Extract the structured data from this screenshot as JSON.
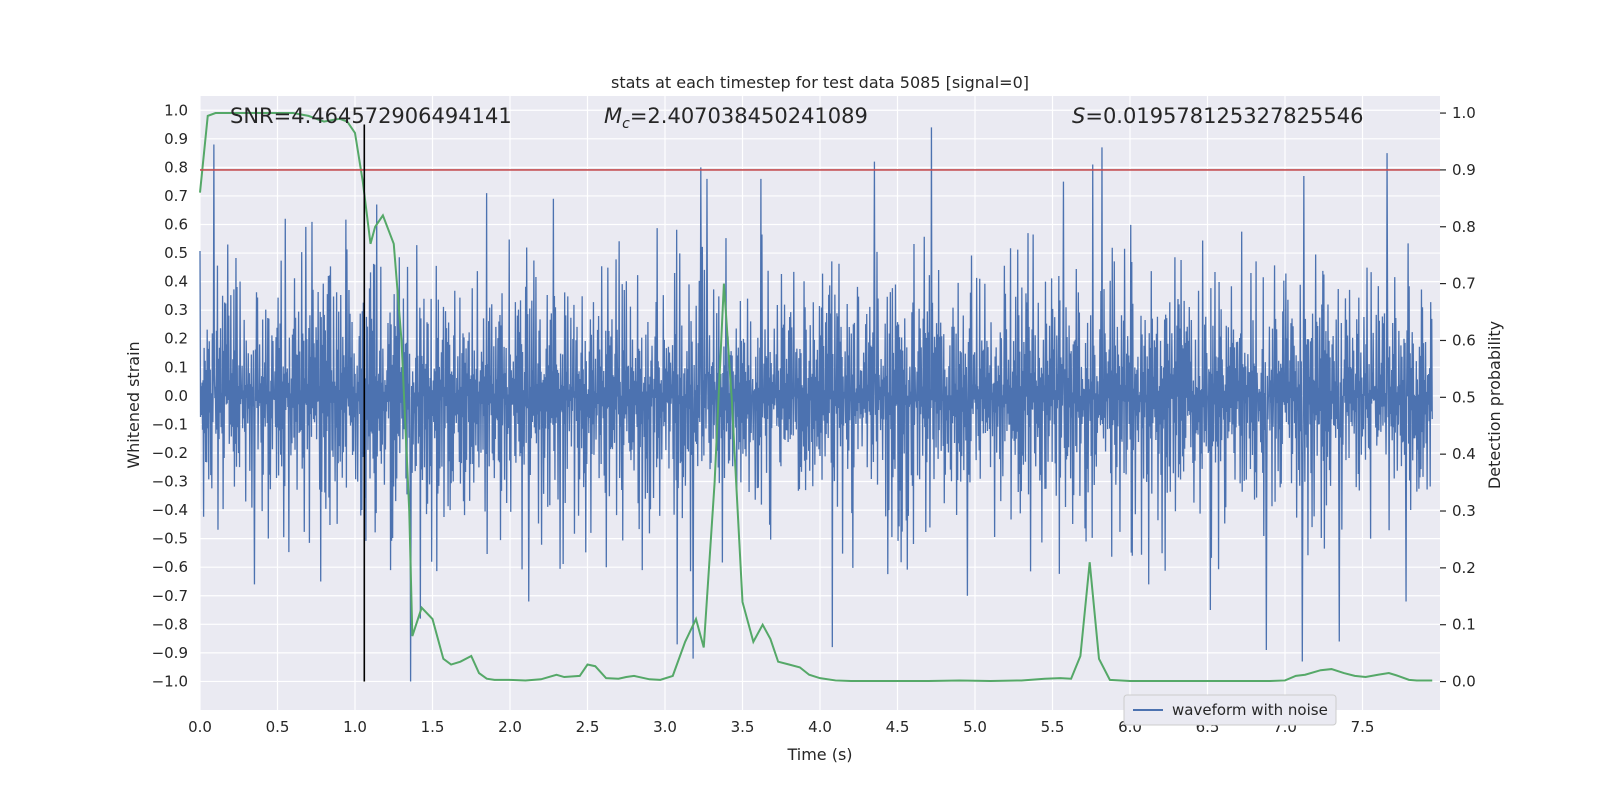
{
  "chart_data": {
    "type": "line",
    "title": "stats at each timestep for test data 5085 [signal=0]",
    "xlabel": "Time (s)",
    "ylabel": "Whitened strain",
    "y2label": "Detection probability",
    "xlim": [
      0.0,
      8.0
    ],
    "ylim": [
      -1.1,
      1.05
    ],
    "y2lim": [
      -0.05,
      1.03
    ],
    "xticks": [
      "0.0",
      "0.5",
      "1.0",
      "1.5",
      "2.0",
      "2.5",
      "3.0",
      "3.5",
      "4.0",
      "4.5",
      "5.0",
      "5.5",
      "6.0",
      "6.5",
      "7.0",
      "7.5"
    ],
    "yticks": [
      "1.0",
      "0.9",
      "0.8",
      "0.7",
      "0.6",
      "0.5",
      "0.4",
      "0.3",
      "0.2",
      "0.1",
      "0.0",
      "-0.1",
      "-0.2",
      "-0.3",
      "-0.4",
      "-0.5",
      "-0.6",
      "-0.7",
      "-0.8",
      "-0.9",
      "-1.0"
    ],
    "y2ticks": [
      "1.0",
      "0.9",
      "0.8",
      "0.7",
      "0.6",
      "0.5",
      "0.4",
      "0.3",
      "0.2",
      "0.1",
      "0.0"
    ],
    "annotations": {
      "snr": "SNR=4.464572906494141",
      "mc_symbol": "M",
      "mc_subscript": "c",
      "mc_value": "=2.407038450241089",
      "s_symbol": "S",
      "s_value": "=0.019578125327825546"
    },
    "legend": {
      "label": "waveform with noise",
      "location": "lower-right"
    },
    "threshold_probability": 0.9,
    "marker_time": 1.06,
    "waveform": {
      "name": "waveform with noise",
      "color": "#4c72b0",
      "typical_envelope": 0.4,
      "spikes": [
        [
          0.09,
          0.88
        ],
        [
          0.18,
          0.53
        ],
        [
          0.35,
          -0.66
        ],
        [
          0.55,
          0.62
        ],
        [
          0.78,
          -0.65
        ],
        [
          1.14,
          0.67
        ],
        [
          1.23,
          -0.61
        ],
        [
          1.36,
          -1.0
        ],
        [
          1.42,
          -0.78
        ],
        [
          1.85,
          0.71
        ],
        [
          2.12,
          -0.72
        ],
        [
          2.28,
          0.69
        ],
        [
          2.62,
          -0.6
        ],
        [
          3.08,
          -0.87
        ],
        [
          3.18,
          -0.92
        ],
        [
          3.23,
          0.8
        ],
        [
          3.27,
          0.76
        ],
        [
          3.62,
          0.76
        ],
        [
          4.08,
          -0.88
        ],
        [
          4.35,
          0.82
        ],
        [
          4.72,
          0.94
        ],
        [
          4.95,
          -0.7
        ],
        [
          5.57,
          0.75
        ],
        [
          5.76,
          0.81
        ],
        [
          5.82,
          0.87
        ],
        [
          6.12,
          -0.66
        ],
        [
          6.52,
          -0.75
        ],
        [
          6.88,
          -0.89
        ],
        [
          7.11,
          -0.93
        ],
        [
          7.12,
          0.77
        ],
        [
          7.35,
          -0.86
        ],
        [
          7.66,
          0.85
        ],
        [
          7.78,
          -0.72
        ]
      ]
    },
    "probability": {
      "name": "detection probability",
      "color": "#55a868",
      "x": [
        0.0,
        0.05,
        0.1,
        0.2,
        0.3,
        0.4,
        0.5,
        0.6,
        0.7,
        0.8,
        0.9,
        0.95,
        1.0,
        1.05,
        1.1,
        1.13,
        1.18,
        1.25,
        1.3,
        1.35,
        1.37,
        1.43,
        1.5,
        1.57,
        1.62,
        1.68,
        1.75,
        1.8,
        1.85,
        1.9,
        2.0,
        2.1,
        2.2,
        2.3,
        2.35,
        2.45,
        2.5,
        2.55,
        2.62,
        2.7,
        2.75,
        2.8,
        2.9,
        2.97,
        3.05,
        3.13,
        3.2,
        3.25,
        3.32,
        3.38,
        3.43,
        3.5,
        3.57,
        3.63,
        3.68,
        3.73,
        3.8,
        3.87,
        3.93,
        4.0,
        4.1,
        4.2,
        4.3,
        4.5,
        4.7,
        4.9,
        5.1,
        5.3,
        5.45,
        5.55,
        5.62,
        5.68,
        5.74,
        5.8,
        5.87,
        6.0,
        6.1,
        6.3,
        6.5,
        6.7,
        6.9,
        7.0,
        7.07,
        7.13,
        7.23,
        7.3,
        7.38,
        7.45,
        7.52,
        7.6,
        7.67,
        7.73,
        7.8,
        7.85,
        7.95
      ],
      "y": [
        0.86,
        0.995,
        1.0,
        1.0,
        1.0,
        1.0,
        1.0,
        1.0,
        0.995,
        0.985,
        0.99,
        0.985,
        0.965,
        0.88,
        0.77,
        0.8,
        0.82,
        0.77,
        0.6,
        0.3,
        0.08,
        0.13,
        0.11,
        0.04,
        0.03,
        0.035,
        0.045,
        0.015,
        0.005,
        0.003,
        0.003,
        0.002,
        0.004,
        0.012,
        0.008,
        0.01,
        0.03,
        0.027,
        0.006,
        0.005,
        0.008,
        0.01,
        0.004,
        0.003,
        0.01,
        0.07,
        0.11,
        0.06,
        0.35,
        0.7,
        0.5,
        0.14,
        0.07,
        0.1,
        0.075,
        0.035,
        0.03,
        0.025,
        0.012,
        0.006,
        0.002,
        0.001,
        0.001,
        0.001,
        0.001,
        0.002,
        0.001,
        0.002,
        0.005,
        0.006,
        0.005,
        0.045,
        0.21,
        0.04,
        0.003,
        0.001,
        0.001,
        0.001,
        0.001,
        0.001,
        0.001,
        0.002,
        0.01,
        0.012,
        0.02,
        0.022,
        0.015,
        0.01,
        0.008,
        0.012,
        0.015,
        0.01,
        0.003,
        0.002,
        0.002
      ]
    },
    "colors": {
      "background": "#eaeaf2",
      "grid": "#ffffff",
      "threshold": "#c44e52",
      "marker": "#000000",
      "text": "#262626"
    }
  }
}
